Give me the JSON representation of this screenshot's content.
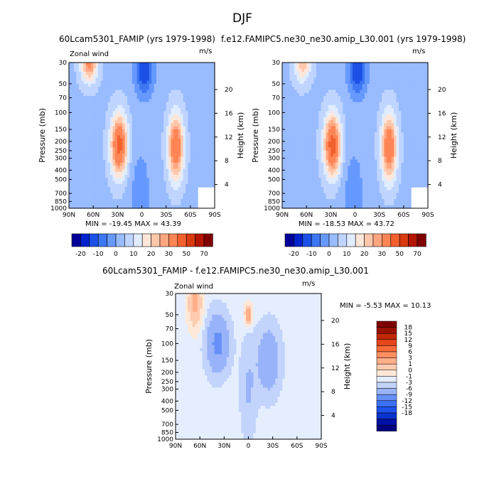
{
  "page_title": "DJF",
  "panel_a": {
    "title": "60Lcam5301_FAMIP (yrs 1979-1998)",
    "left_label": "Zonal wind",
    "units": "m/s",
    "ylabel": "Pressure (mb)",
    "ylabel_right": "Height (km)",
    "stats": "MIN = -19.45   MAX =  43.39"
  },
  "panel_b": {
    "title": "f.e12.FAMIPC5.ne30_ne30.amip_L30.001 (yrs 1979-1998)",
    "left_label": "",
    "units": "m/s",
    "ylabel": "Pressure (mb)",
    "ylabel_right": "Height (km)",
    "stats": "MIN = -18.53   MAX =  43.72"
  },
  "panel_c": {
    "title": "60Lcam5301_FAMIP - f.e12.FAMIPC5.ne30_ne30.amip_L30.001",
    "left_label": "Zonal wind",
    "units": "m/s",
    "ylabel": "Pressure (mb)",
    "ylabel_right": "Height (km)",
    "stats": "MIN =  -5.53   MAX =  10.13"
  },
  "colors": {
    "model_scale": [
      "#000099",
      "#0022cc",
      "#1a50e6",
      "#3d77f2",
      "#6699ff",
      "#99bbff",
      "#bfd5ff",
      "#e0ecff",
      "#ffe6d9",
      "#ffc7aa",
      "#ffa680",
      "#ff8555",
      "#f2602e",
      "#d93a0f",
      "#b31500",
      "#800000"
    ],
    "diff_scale": [
      "#000080",
      "#0011a6",
      "#0a33cc",
      "#1f52eb",
      "#3d71f5",
      "#6690f7",
      "#99b3fa",
      "#c2d3fc",
      "#e4eefe",
      "#ffe8d8",
      "#ffcbb0",
      "#ffae88",
      "#ff8f60",
      "#f86a38",
      "#e3471a",
      "#c02808",
      "#9a1000",
      "#800000"
    ]
  },
  "chart_data": [
    {
      "type": "heatmap",
      "title": "60Lcam5301_FAMIP (yrs 1979-1998)",
      "variable": "Zonal wind",
      "units": "m/s",
      "xlabel": "",
      "ylabel": "Pressure (mb)",
      "ylabel_right": "Height (km)",
      "x_ticks": [
        "90N",
        "60N",
        "30N",
        "0",
        "30S",
        "60S",
        "90S"
      ],
      "y_ticks": [
        30,
        50,
        70,
        100,
        150,
        200,
        250,
        300,
        400,
        500,
        700,
        850,
        1000
      ],
      "y_right_ticks": [
        4,
        8,
        12,
        16,
        20
      ],
      "min": -19.45,
      "max": 43.39,
      "colorbar_levels": [
        -20,
        -15,
        -10,
        -5,
        0,
        5,
        10,
        15,
        20,
        25,
        30,
        40,
        50,
        60,
        70
      ],
      "colorbar_tick_labels": [
        "-20",
        "-10",
        "0",
        "10",
        "20",
        "30",
        "50",
        "70"
      ],
      "features": [
        {
          "lat": 28,
          "p": 220,
          "value": 40,
          "width_deg": 10,
          "depth": 0.7
        },
        {
          "lat": -42,
          "p": 230,
          "value": 36,
          "width_deg": 9,
          "depth": 0.75
        },
        {
          "lat": 65,
          "p": 30,
          "value": 28,
          "width_deg": 10,
          "depth": 0.45
        },
        {
          "lat": -3,
          "p": 35,
          "value": -19,
          "width_deg": 12,
          "depth": 0.65
        },
        {
          "lat": 2,
          "p": 700,
          "value": -7,
          "width_deg": 14,
          "depth": 1.2
        }
      ]
    },
    {
      "type": "heatmap",
      "title": "f.e12.FAMIPC5.ne30_ne30.amip_L30.001 (yrs 1979-1998)",
      "variable": "Zonal wind",
      "units": "m/s",
      "xlabel": "",
      "ylabel": "Pressure (mb)",
      "ylabel_right": "Height (km)",
      "x_ticks": [
        "90N",
        "60N",
        "30N",
        "0",
        "30S",
        "60S",
        "90S"
      ],
      "y_ticks": [
        30,
        50,
        70,
        100,
        150,
        200,
        250,
        300,
        400,
        500,
        700,
        850,
        1000
      ],
      "y_right_ticks": [
        4,
        8,
        12,
        16,
        20
      ],
      "min": -18.53,
      "max": 43.72,
      "colorbar_levels": [
        -20,
        -15,
        -10,
        -5,
        0,
        5,
        10,
        15,
        20,
        25,
        30,
        40,
        50,
        60,
        70
      ],
      "colorbar_tick_labels": [
        "-20",
        "-10",
        "0",
        "10",
        "20",
        "30",
        "50",
        "70"
      ],
      "features": [
        {
          "lat": 28,
          "p": 220,
          "value": 41,
          "width_deg": 10,
          "depth": 0.7
        },
        {
          "lat": -42,
          "p": 230,
          "value": 36,
          "width_deg": 9,
          "depth": 0.75
        },
        {
          "lat": 65,
          "p": 30,
          "value": 20,
          "width_deg": 10,
          "depth": 0.45
        },
        {
          "lat": -3,
          "p": 35,
          "value": -19,
          "width_deg": 12,
          "depth": 0.65
        },
        {
          "lat": 2,
          "p": 700,
          "value": -7,
          "width_deg": 14,
          "depth": 1.2
        }
      ]
    },
    {
      "type": "heatmap",
      "title": "60Lcam5301_FAMIP - f.e12.FAMIPC5.ne30_ne30.amip_L30.001",
      "variable": "Zonal wind",
      "units": "m/s",
      "xlabel": "",
      "ylabel": "Pressure (mb)",
      "ylabel_right": "Height (km)",
      "x_ticks": [
        "90N",
        "60N",
        "30N",
        "0",
        "30S",
        "60S",
        "90S"
      ],
      "y_ticks": [
        30,
        50,
        70,
        100,
        150,
        200,
        250,
        300,
        400,
        500,
        700,
        850,
        1000
      ],
      "y_right_ticks": [
        4,
        8,
        12,
        16,
        20
      ],
      "min": -5.53,
      "max": 10.13,
      "colorbar_levels": [
        -18,
        -15,
        -12,
        -9,
        -6,
        -3,
        -1,
        0,
        1,
        3,
        6,
        9,
        12,
        15,
        18
      ],
      "colorbar_tick_labels": [
        "18",
        "15",
        "12",
        "9",
        "6",
        "3",
        "1",
        "0",
        "-1",
        "-3",
        "-6",
        "-9",
        "-12",
        "-15",
        "-18"
      ],
      "features": [
        {
          "lat": 66,
          "p": 38,
          "value": 7,
          "width_deg": 8,
          "depth": 0.55
        },
        {
          "lat": 38,
          "p": 100,
          "value": -4,
          "width_deg": 14,
          "depth": 0.7
        },
        {
          "lat": -25,
          "p": 150,
          "value": -3,
          "width_deg": 14,
          "depth": 0.8
        },
        {
          "lat": 0,
          "p": 50,
          "value": 10,
          "width_deg": 4,
          "depth": 0.22
        },
        {
          "lat": 0,
          "p": 300,
          "value": -1.5,
          "width_deg": 10,
          "depth": 1.2
        }
      ]
    }
  ]
}
